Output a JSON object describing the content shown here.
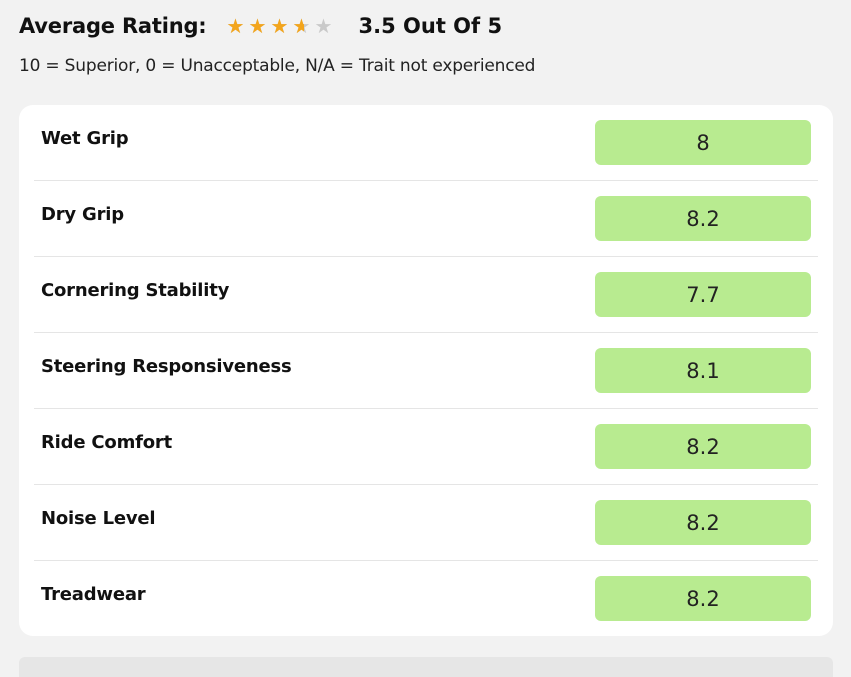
{
  "header": {
    "avg_label": "Average Rating:",
    "rating": 3.5,
    "max_rating": 5,
    "score_text": "3.5 Out Of 5",
    "star_color": "#f3a51c",
    "star_empty_color": "#c9c9c9"
  },
  "subtitle": "10 = Superior, 0 = Unacceptable, N/A = Trait not experienced",
  "value_bg_color": "#b8eb90",
  "rows": [
    {
      "label": "Wet Grip",
      "value": "8"
    },
    {
      "label": "Dry Grip",
      "value": "8.2"
    },
    {
      "label": "Cornering Stability",
      "value": "7.7"
    },
    {
      "label": "Steering Responsiveness",
      "value": "8.1"
    },
    {
      "label": "Ride Comfort",
      "value": "8.2"
    },
    {
      "label": "Noise Level",
      "value": "8.2"
    },
    {
      "label": "Treadwear",
      "value": "8.2"
    }
  ]
}
